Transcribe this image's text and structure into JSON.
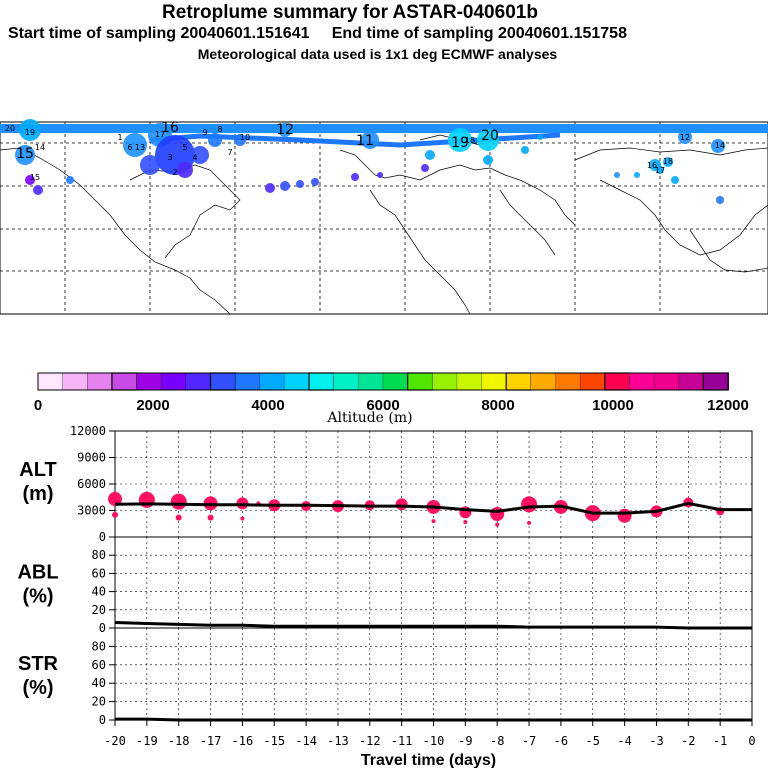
{
  "header": {
    "title": "Retroplume summary for ASTAR-040601b",
    "sampling_line": "Start time of sampling 20040601.151641     End time of sampling 20040601.151758",
    "met_line": "Meteorological data used is 1x1 deg ECMWF analyses"
  },
  "colorbar": {
    "tick_labels": [
      "0",
      "2000",
      "4000",
      "6000",
      "8000",
      "10000",
      "12000"
    ],
    "label": "Altitude (m)",
    "colors": [
      "#ffe6ff",
      "#f5b4f5",
      "#e682f0",
      "#c84be6",
      "#a000e6",
      "#7800ff",
      "#5028ff",
      "#3250ff",
      "#1e78ff",
      "#00aaff",
      "#00d2ff",
      "#00f0f0",
      "#00f0c8",
      "#00e696",
      "#00dc50",
      "#50e600",
      "#96f000",
      "#c8f500",
      "#f0f500",
      "#ffd200",
      "#ffaa00",
      "#ff7800",
      "#ff4600",
      "#ff0050",
      "#ff0096",
      "#f0008c",
      "#c80096",
      "#960096"
    ]
  },
  "map": {
    "trajectory_labels": [
      "20",
      "19",
      "17",
      "16",
      "15",
      "14",
      "13",
      "12",
      "11",
      "10",
      "9",
      "8",
      "7",
      "6",
      "5",
      "4",
      "3",
      "2",
      "1",
      "18",
      "19",
      "20",
      "12",
      "14",
      "16",
      "18",
      "15",
      "17"
    ]
  },
  "colors": {
    "marker": "#ff1060",
    "line": "#000000"
  },
  "chart_data": [
    {
      "type": "line",
      "name": "ALT",
      "ylabel": "ALT\n(m)",
      "ylim": [
        0,
        12000
      ],
      "yticks": [
        "0",
        "3000",
        "6000",
        "9000",
        "12000"
      ],
      "x": [
        -20,
        -19,
        -18,
        -17,
        -16,
        -15,
        -14,
        -13,
        -12,
        -11,
        -10,
        -9,
        -8,
        -7,
        -6,
        -5,
        -4,
        -3,
        -2,
        -1,
        0
      ],
      "values": [
        3700,
        3750,
        3700,
        3650,
        3650,
        3600,
        3600,
        3550,
        3500,
        3500,
        3400,
        3100,
        2900,
        3400,
        3500,
        2700,
        2700,
        2900,
        3800,
        3100,
        3100
      ],
      "markers": [
        {
          "x": -20,
          "y": 4300,
          "r": 7
        },
        {
          "x": -19,
          "y": 4200,
          "r": 8
        },
        {
          "x": -18,
          "y": 4000,
          "r": 8
        },
        {
          "x": -17,
          "y": 3800,
          "r": 7
        },
        {
          "x": -16,
          "y": 3800,
          "r": 6
        },
        {
          "x": -15,
          "y": 3600,
          "r": 6
        },
        {
          "x": -14,
          "y": 3500,
          "r": 5
        },
        {
          "x": -13,
          "y": 3500,
          "r": 6
        },
        {
          "x": -12,
          "y": 3600,
          "r": 5
        },
        {
          "x": -11,
          "y": 3700,
          "r": 6
        },
        {
          "x": -10,
          "y": 3400,
          "r": 7
        },
        {
          "x": -9,
          "y": 2800,
          "r": 6
        },
        {
          "x": -8,
          "y": 2600,
          "r": 7
        },
        {
          "x": -7,
          "y": 3700,
          "r": 8
        },
        {
          "x": -6,
          "y": 3400,
          "r": 7
        },
        {
          "x": -5,
          "y": 2700,
          "r": 8
        },
        {
          "x": -4,
          "y": 2400,
          "r": 7
        },
        {
          "x": -3,
          "y": 2900,
          "r": 6
        },
        {
          "x": -2,
          "y": 3900,
          "r": 5
        },
        {
          "x": -1,
          "y": 2900,
          "r": 4
        },
        {
          "x": -20,
          "y": 2500,
          "r": 3
        },
        {
          "x": -18,
          "y": 2200,
          "r": 3
        },
        {
          "x": -17,
          "y": 2200,
          "r": 3
        },
        {
          "x": -16,
          "y": 2100,
          "r": 2
        },
        {
          "x": -10,
          "y": 1800,
          "r": 2
        },
        {
          "x": -9,
          "y": 1700,
          "r": 2
        },
        {
          "x": -8,
          "y": 1400,
          "r": 2
        },
        {
          "x": -7,
          "y": 1600,
          "r": 2
        },
        {
          "x": -15.5,
          "y": 3800,
          "r": 2
        }
      ]
    },
    {
      "type": "line",
      "name": "ABL",
      "ylabel": "ABL\n(%)",
      "ylim": [
        0,
        100
      ],
      "yticks": [
        "0",
        "20",
        "40",
        "60",
        "80"
      ],
      "x": [
        -20,
        -19,
        -18,
        -17,
        -16,
        -15,
        -14,
        -13,
        -12,
        -11,
        -10,
        -9,
        -8,
        -7,
        -6,
        -5,
        -4,
        -3,
        -2,
        -1,
        0
      ],
      "values": [
        6,
        5,
        4,
        3,
        3,
        2,
        2,
        2,
        2,
        2,
        2,
        2,
        2,
        1,
        1,
        1,
        1,
        1,
        0,
        0,
        0
      ]
    },
    {
      "type": "line",
      "name": "STR",
      "ylabel": "STR\n(%)",
      "ylim": [
        0,
        100
      ],
      "yticks": [
        "0",
        "20",
        "40",
        "60",
        "80"
      ],
      "xlabel": "Travel time (days)",
      "xticks": [
        "-20",
        "-19",
        "-18",
        "-17",
        "-16",
        "-15",
        "-14",
        "-13",
        "-12",
        "-11",
        "-10",
        "-9",
        "-8",
        "-7",
        "-6",
        "-5",
        "-4",
        "-3",
        "-2",
        "-1",
        "0"
      ],
      "x": [
        -20,
        -19,
        -18,
        -17,
        -16,
        -15,
        -14,
        -13,
        -12,
        -11,
        -10,
        -9,
        -8,
        -7,
        -6,
        -5,
        -4,
        -3,
        -2,
        -1,
        0
      ],
      "values": [
        1,
        1,
        0,
        0,
        0,
        0,
        0,
        0,
        0,
        0,
        0,
        0,
        0,
        0,
        0,
        0,
        0,
        0,
        0,
        0,
        0
      ]
    }
  ]
}
